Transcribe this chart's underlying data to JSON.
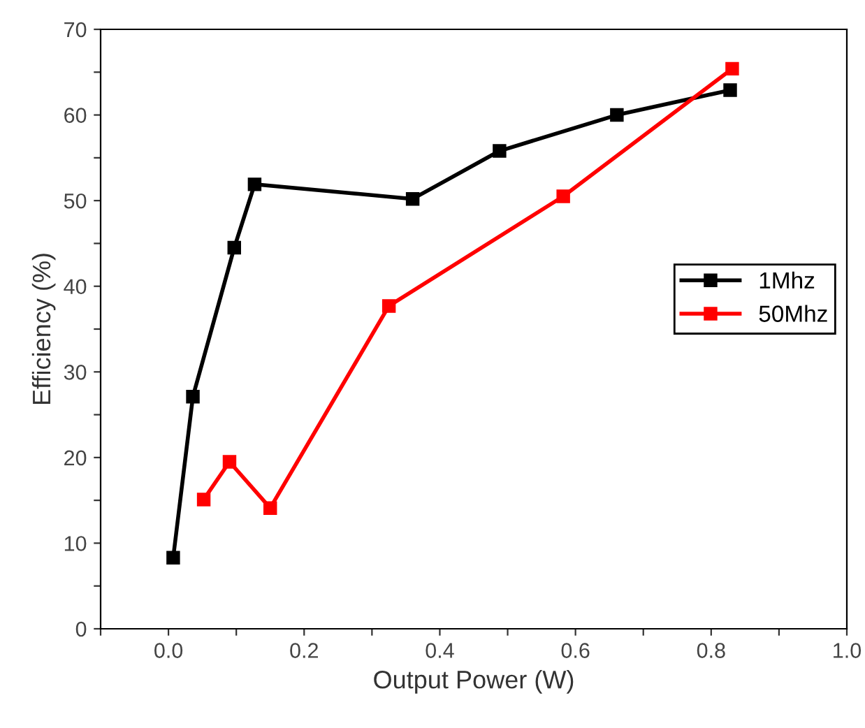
{
  "chart_data": {
    "type": "line",
    "xlabel": "Output Power (W)",
    "ylabel": "Efficiency (%)",
    "xlim": [
      -0.1,
      1.0
    ],
    "xticks": [
      {
        "value": -0.1,
        "label": null
      },
      {
        "value": 0.0,
        "label": "0.0"
      },
      {
        "value": 0.1,
        "label": null
      },
      {
        "value": 0.2,
        "label": "0.2"
      },
      {
        "value": 0.3,
        "label": null
      },
      {
        "value": 0.4,
        "label": "0.4"
      },
      {
        "value": 0.5,
        "label": null
      },
      {
        "value": 0.6,
        "label": "0.6"
      },
      {
        "value": 0.7,
        "label": null
      },
      {
        "value": 0.8,
        "label": "0.8"
      },
      {
        "value": 0.9,
        "label": null
      },
      {
        "value": 1.0,
        "label": "1.0"
      }
    ],
    "ylim": [
      0,
      70
    ],
    "yticks": [
      0,
      {
        "value": 5,
        "label": null
      },
      10,
      {
        "value": 15,
        "label": null
      },
      20,
      {
        "value": 25,
        "label": null
      },
      30,
      {
        "value": 35,
        "label": null
      },
      40,
      {
        "value": 45,
        "label": null
      },
      50,
      {
        "value": 55,
        "label": null
      },
      60,
      {
        "value": 65,
        "label": null
      },
      70
    ],
    "grid": false,
    "legend": "right",
    "marker": "square",
    "line_style": "solid",
    "series": [
      {
        "name": "1Mhz",
        "color": "#000000",
        "x": [
          0.007,
          0.036,
          0.097,
          0.127,
          0.36,
          0.488,
          0.661,
          0.828
        ],
        "values": [
          8.3,
          27.1,
          44.5,
          51.9,
          50.2,
          55.8,
          60.0,
          62.9
        ]
      },
      {
        "name": "50Mhz",
        "color": "#ff0000",
        "x": [
          0.052,
          0.09,
          0.15,
          0.325,
          0.582,
          0.831
        ],
        "values": [
          15.1,
          19.5,
          14.1,
          37.7,
          50.5,
          65.4
        ]
      }
    ]
  }
}
